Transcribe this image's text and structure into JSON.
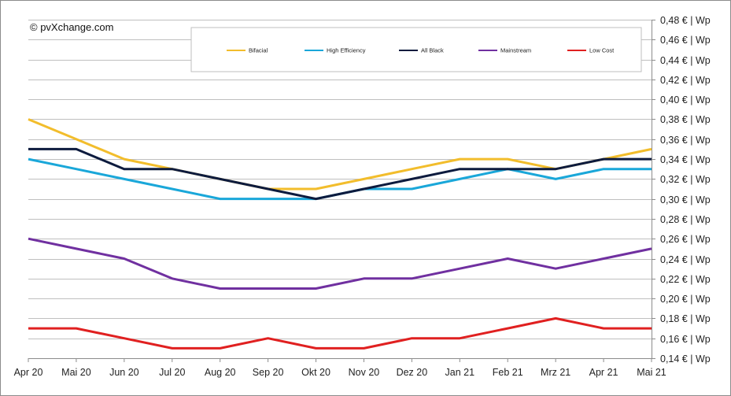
{
  "copyright": "© pvXchange.com",
  "chart_data": {
    "type": "line",
    "title": "",
    "xlabel": "",
    "ylabel": "",
    "categories": [
      "Apr 20",
      "Mai 20",
      "Jun 20",
      "Jul 20",
      "Aug 20",
      "Sep 20",
      "Okt 20",
      "Nov 20",
      "Dez 20",
      "Jan 21",
      "Feb 21",
      "Mrz 21",
      "Apr 21",
      "Mai 21"
    ],
    "ylim": [
      0.14,
      0.48
    ],
    "ytick_step": 0.02,
    "yticks": [
      "0,48 € | Wp",
      "0,46 € | Wp",
      "0,44 € | Wp",
      "0,42 € | Wp",
      "0,40 € | Wp",
      "0,38 € | Wp",
      "0,36 € | Wp",
      "0,34 € | Wp",
      "0,32 € | Wp",
      "0,30 € | Wp",
      "0,28 € | Wp",
      "0,26 € | Wp",
      "0,24 € | Wp",
      "0,22 € | Wp",
      "0,20 € | Wp",
      "0,18 € | Wp",
      "0,16 € | Wp",
      "0,14 € | Wp"
    ],
    "legend_position": "top",
    "grid": true,
    "series": [
      {
        "name": "Bifacial",
        "color": "#f2bd2c",
        "values": [
          0.38,
          0.36,
          0.34,
          0.33,
          0.32,
          0.31,
          0.31,
          0.32,
          0.33,
          0.34,
          0.34,
          0.33,
          0.34,
          0.35
        ]
      },
      {
        "name": "High Efficiency",
        "color": "#1aa7d9",
        "values": [
          0.34,
          0.33,
          0.32,
          0.31,
          0.3,
          0.3,
          0.3,
          0.31,
          0.31,
          0.32,
          0.33,
          0.32,
          0.33,
          0.33
        ]
      },
      {
        "name": "All Black",
        "color": "#0d1b3e",
        "values": [
          0.35,
          0.35,
          0.33,
          0.33,
          0.32,
          0.31,
          0.3,
          0.31,
          0.32,
          0.33,
          0.33,
          0.33,
          0.34,
          0.34
        ]
      },
      {
        "name": "Mainstream",
        "color": "#7030a0",
        "values": [
          0.26,
          0.25,
          0.24,
          0.22,
          0.21,
          0.21,
          0.21,
          0.22,
          0.22,
          0.23,
          0.24,
          0.23,
          0.24,
          0.25
        ]
      },
      {
        "name": "Low Cost",
        "color": "#e02020",
        "values": [
          0.17,
          0.17,
          0.16,
          0.15,
          0.15,
          0.16,
          0.15,
          0.15,
          0.16,
          0.16,
          0.17,
          0.18,
          0.17,
          0.17
        ]
      }
    ]
  }
}
